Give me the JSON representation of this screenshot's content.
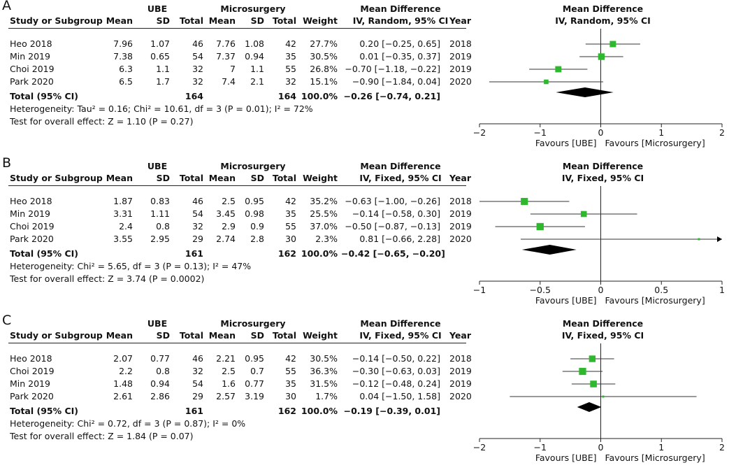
{
  "chart_data": [
    {
      "type": "forest",
      "panel_label": "A",
      "group1_label": "UBE",
      "group2_label": "Microsurgery",
      "effect_header": "Mean Difference",
      "effect_subheader": "IV, Random, 95% CI",
      "plot_header": "Mean Difference",
      "plot_subheader": "IV, Random, 95% CI",
      "columns": {
        "study": "Study or Subgroup",
        "mean1": "Mean",
        "sd1": "SD",
        "total1": "Total",
        "mean2": "Mean",
        "sd2": "SD",
        "total2": "Total",
        "weight": "Weight",
        "year": "Year"
      },
      "studies": [
        {
          "name": "Heo 2018",
          "mean1": "7.96",
          "sd1": "1.07",
          "total1": "46",
          "mean2": "7.76",
          "sd2": "1.08",
          "total2": "42",
          "weight": "27.7%",
          "ci_text": "0.20 [−0.25, 0.65]",
          "year": "2018",
          "md": 0.2,
          "lo": -0.25,
          "hi": 0.65,
          "w": 27.7
        },
        {
          "name": "Min 2019",
          "mean1": "7.38",
          "sd1": "0.65",
          "total1": "54",
          "mean2": "7.37",
          "sd2": "0.94",
          "total2": "35",
          "weight": "30.5%",
          "ci_text": "0.01 [−0.35, 0.37]",
          "year": "2019",
          "md": 0.01,
          "lo": -0.35,
          "hi": 0.37,
          "w": 30.5
        },
        {
          "name": "Choi 2019",
          "mean1": "6.3",
          "sd1": "1.1",
          "total1": "32",
          "mean2": "7",
          "sd2": "1.1",
          "total2": "55",
          "weight": "26.8%",
          "ci_text": "−0.70 [−1.18, −0.22]",
          "year": "2019",
          "md": -0.7,
          "lo": -1.18,
          "hi": -0.22,
          "w": 26.8
        },
        {
          "name": "Park 2020",
          "mean1": "6.5",
          "sd1": "1.7",
          "total1": "32",
          "mean2": "7.4",
          "sd2": "2.1",
          "total2": "32",
          "weight": "15.1%",
          "ci_text": "−0.90 [−1.84, 0.04]",
          "year": "2020",
          "md": -0.9,
          "lo": -1.84,
          "hi": 0.04,
          "w": 15.1
        }
      ],
      "total": {
        "label": "Total (95% CI)",
        "total1": "164",
        "total2": "164",
        "weight": "100.0%",
        "ci_text": "−0.26 [−0.74, 0.21]",
        "md": -0.26,
        "lo": -0.74,
        "hi": 0.21
      },
      "heterogeneity": "Heterogeneity: Tau² = 0.16; Chi² = 10.61, df = 3 (P = 0.01); I² = 72%",
      "overall_effect": "Test for overall effect: Z = 1.10 (P = 0.27)",
      "axis": {
        "min": -2,
        "max": 2,
        "ticks": [
          -2,
          -1,
          0,
          1,
          2
        ],
        "tick_labels": [
          "−2",
          "−1",
          "0",
          "1",
          "2"
        ]
      },
      "favours_left": "Favours [UBE]",
      "favours_right": "Favours [Microsurgery]"
    },
    {
      "type": "forest",
      "panel_label": "B",
      "group1_label": "UBE",
      "group2_label": "Microsurgery",
      "effect_header": "Mean Difference",
      "effect_subheader": "IV, Fixed, 95% CI",
      "plot_header": "Mean Difference",
      "plot_subheader": "IV, Fixed, 95% CI",
      "columns": {
        "study": "Study or Subgroup",
        "mean1": "Mean",
        "sd1": "SD",
        "total1": "Total",
        "mean2": "Mean",
        "sd2": "SD",
        "total2": "Total",
        "weight": "Weight",
        "year": "Year"
      },
      "studies": [
        {
          "name": "Heo 2018",
          "mean1": "1.87",
          "sd1": "0.83",
          "total1": "46",
          "mean2": "2.5",
          "sd2": "0.95",
          "total2": "42",
          "weight": "35.2%",
          "ci_text": "−0.63 [−1.00, −0.26]",
          "year": "2018",
          "md": -0.63,
          "lo": -1.0,
          "hi": -0.26,
          "w": 35.2
        },
        {
          "name": "Min 2019",
          "mean1": "3.31",
          "sd1": "1.11",
          "total1": "54",
          "mean2": "3.45",
          "sd2": "0.98",
          "total2": "35",
          "weight": "25.5%",
          "ci_text": "−0.14 [−0.58, 0.30]",
          "year": "2019",
          "md": -0.14,
          "lo": -0.58,
          "hi": 0.3,
          "w": 25.5
        },
        {
          "name": "Choi 2019",
          "mean1": "2.4",
          "sd1": "0.8",
          "total1": "32",
          "mean2": "2.9",
          "sd2": "0.9",
          "total2": "55",
          "weight": "37.0%",
          "ci_text": "−0.50 [−0.87, −0.13]",
          "year": "2019",
          "md": -0.5,
          "lo": -0.87,
          "hi": -0.13,
          "w": 37.0
        },
        {
          "name": "Park 2020",
          "mean1": "3.55",
          "sd1": "2.95",
          "total1": "29",
          "mean2": "2.74",
          "sd2": "2.8",
          "total2": "30",
          "weight": "2.3%",
          "ci_text": "0.81 [−0.66, 2.28]",
          "year": "2020",
          "md": 0.81,
          "lo": -0.66,
          "hi": 2.28,
          "w": 2.3
        }
      ],
      "total": {
        "label": "Total (95% CI)",
        "total1": "161",
        "total2": "162",
        "weight": "100.0%",
        "ci_text": "−0.42 [−0.65, −0.20]",
        "md": -0.42,
        "lo": -0.65,
        "hi": -0.2
      },
      "heterogeneity": "Heterogeneity: Chi² = 5.65, df = 3 (P = 0.13); I² = 47%",
      "overall_effect": "Test for overall effect: Z = 3.74 (P = 0.0002)",
      "axis": {
        "min": -1,
        "max": 1,
        "ticks": [
          -1,
          -0.5,
          0,
          0.5,
          1
        ],
        "tick_labels": [
          "−1",
          "−0.5",
          "0",
          "0.5",
          "1"
        ]
      },
      "favours_left": "Favours [UBE]",
      "favours_right": "Favours [Microsurgery]"
    },
    {
      "type": "forest",
      "panel_label": "C",
      "group1_label": "UBE",
      "group2_label": "Microsurgery",
      "effect_header": "Mean Difference",
      "effect_subheader": "IV, Fixed, 95% CI",
      "plot_header": "Mean Difference",
      "plot_subheader": "IV, Fixed, 95% CI",
      "columns": {
        "study": "Study or Subgroup",
        "mean1": "Mean",
        "sd1": "SD",
        "total1": "Total",
        "mean2": "Mean",
        "sd2": "SD",
        "total2": "Total",
        "weight": "Weight",
        "year": "Year"
      },
      "studies": [
        {
          "name": "Heo 2018",
          "mean1": "2.07",
          "sd1": "0.77",
          "total1": "46",
          "mean2": "2.21",
          "sd2": "0.95",
          "total2": "42",
          "weight": "30.5%",
          "ci_text": "−0.14 [−0.50, 0.22]",
          "year": "2018",
          "md": -0.14,
          "lo": -0.5,
          "hi": 0.22,
          "w": 30.5
        },
        {
          "name": "Choi 2019",
          "mean1": "2.2",
          "sd1": "0.8",
          "total1": "32",
          "mean2": "2.5",
          "sd2": "0.7",
          "total2": "55",
          "weight": "36.3%",
          "ci_text": "−0.30 [−0.63, 0.03]",
          "year": "2019",
          "md": -0.3,
          "lo": -0.63,
          "hi": 0.03,
          "w": 36.3
        },
        {
          "name": "Min 2019",
          "mean1": "1.48",
          "sd1": "0.94",
          "total1": "54",
          "mean2": "1.6",
          "sd2": "0.77",
          "total2": "35",
          "weight": "31.5%",
          "ci_text": "−0.12 [−0.48, 0.24]",
          "year": "2019",
          "md": -0.12,
          "lo": -0.48,
          "hi": 0.24,
          "w": 31.5
        },
        {
          "name": "Park 2020",
          "mean1": "2.61",
          "sd1": "2.86",
          "total1": "29",
          "mean2": "2.57",
          "sd2": "3.19",
          "total2": "30",
          "weight": "1.7%",
          "ci_text": "0.04 [−1.50, 1.58]",
          "year": "2020",
          "md": 0.04,
          "lo": -1.5,
          "hi": 1.58,
          "w": 1.7
        }
      ],
      "total": {
        "label": "Total (95% CI)",
        "total1": "161",
        "total2": "162",
        "weight": "100.0%",
        "ci_text": "−0.19 [−0.39, 0.01]",
        "md": -0.19,
        "lo": -0.39,
        "hi": 0.01
      },
      "heterogeneity": "Heterogeneity: Chi² = 0.72, df = 3 (P = 0.87); I² = 0%",
      "overall_effect": "Test for overall effect: Z = 1.84 (P = 0.07)",
      "axis": {
        "min": -2,
        "max": 2,
        "ticks": [
          -2,
          -1,
          0,
          1,
          2
        ],
        "tick_labels": [
          "−2",
          "−1",
          "0",
          "1",
          "2"
        ]
      },
      "favours_left": "Favours [UBE]",
      "favours_right": "Favours [Microsurgery]"
    }
  ],
  "colors": {
    "marker": "#2db82d",
    "diamond": "#000000",
    "line": "#222222"
  }
}
